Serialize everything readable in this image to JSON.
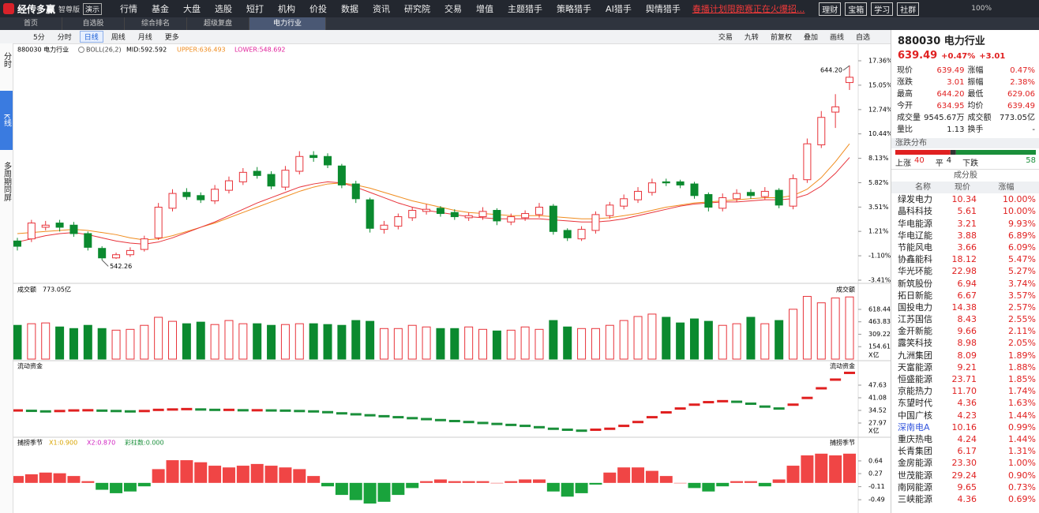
{
  "menu": {
    "logo": "经传多赢",
    "edition": "智尊版",
    "mode": "演示",
    "items": [
      "行情",
      "基金",
      "大盘",
      "选股",
      "短打",
      "机构",
      "价投",
      "数据",
      "资讯",
      "研究院",
      "交易",
      "增值",
      "主题猎手",
      "策略猎手",
      "AI猎手",
      "舆情猎手"
    ],
    "alert": "春播计划限跑赛正在火爆招...",
    "buttons": [
      "理财",
      "宝箱",
      "学习",
      "社群"
    ],
    "zoom": "100%"
  },
  "tabs": [
    "首页",
    "自选股",
    "综合排名",
    "超级复盘",
    "电力行业"
  ],
  "toolbar": {
    "periods": [
      "5分",
      "分时",
      "日线",
      "周线",
      "月线",
      "更多"
    ],
    "tools": [
      "交易",
      "九转",
      "前复权",
      "叠加",
      "画线",
      "自选"
    ]
  },
  "side_tabs": [
    "分时",
    "K线",
    "多周期同屏"
  ],
  "kline": {
    "code_name": "880030 电力行业",
    "indicator": "BOLL(26,2)",
    "mid": "MID:592.592",
    "upper": "UPPER:636.493",
    "lower": "LOWER:548.692",
    "ylim": [
      -3.41,
      17.36
    ],
    "yticks": [
      {
        "value": 17.36,
        "label": "17.36%"
      },
      {
        "value": 15.05,
        "label": "15.05%"
      },
      {
        "value": 12.74,
        "label": "12.74%"
      },
      {
        "value": 10.44,
        "label": "10.44%"
      },
      {
        "value": 8.13,
        "label": "8.13%"
      },
      {
        "value": 5.82,
        "label": "5.82%"
      },
      {
        "value": 3.51,
        "label": "3.51%"
      },
      {
        "value": 1.21,
        "label": "1.21%"
      },
      {
        "value": -1.1,
        "label": "-1.10%"
      },
      {
        "value": -3.41,
        "label": "-3.41%"
      }
    ],
    "high_label": "644.20",
    "low_label": "542.26",
    "up_color": "#e8333a",
    "down_color": "#0b8a2f",
    "open": [
      0.3,
      0.5,
      1.6,
      2.0,
      1.8,
      1.0,
      -0.4,
      -1.3,
      -1.0,
      -0.5,
      0.6,
      3.4,
      4.9,
      4.6,
      4.1,
      5.1,
      5.9,
      6.9,
      6.6,
      5.4,
      6.9,
      8.4,
      8.3,
      7.4,
      5.7,
      4.2,
      1.4,
      1.7,
      2.5,
      3.1,
      3.4,
      3.0,
      2.5,
      2.6,
      3.2,
      2.1,
      2.5,
      2.8,
      3.6,
      1.3,
      0.5,
      1.3,
      2.7,
      3.6,
      4.2,
      4.9,
      5.9,
      5.9,
      5.7,
      4.7,
      3.4,
      4.3,
      4.9,
      4.5,
      5.1,
      3.6,
      6.1,
      9.4,
      12.5,
      15.3
    ],
    "close": [
      -0.2,
      2.0,
      1.8,
      1.6,
      1.0,
      -0.3,
      -1.3,
      -1.0,
      -0.6,
      0.5,
      3.5,
      4.8,
      4.5,
      4.2,
      5.2,
      6.0,
      6.8,
      6.5,
      5.5,
      7.0,
      8.3,
      8.2,
      7.5,
      5.6,
      4.3,
      1.5,
      1.8,
      2.6,
      3.2,
      3.3,
      2.9,
      2.6,
      2.7,
      3.1,
      2.2,
      2.6,
      2.9,
      3.5,
      1.2,
      0.6,
      1.4,
      2.8,
      3.7,
      4.3,
      5.0,
      5.8,
      5.8,
      5.6,
      4.6,
      3.5,
      4.4,
      4.8,
      4.6,
      5.0,
      3.7,
      6.2,
      9.5,
      12.0,
      13.0,
      15.8
    ],
    "high": [
      0.6,
      2.3,
      2.2,
      2.3,
      2.1,
      1.2,
      -0.2,
      -0.8,
      -0.3,
      0.8,
      3.9,
      5.2,
      5.3,
      4.9,
      5.6,
      6.4,
      7.2,
      7.3,
      6.9,
      7.4,
      8.8,
      8.8,
      8.6,
      7.6,
      6.0,
      4.4,
      2.2,
      2.9,
      3.5,
      3.8,
      3.6,
      3.3,
      3.0,
      3.5,
      3.4,
      2.9,
      3.2,
      3.9,
      3.8,
      1.5,
      1.7,
      3.1,
      4.0,
      4.7,
      5.4,
      6.2,
      6.2,
      6.1,
      5.9,
      4.9,
      4.8,
      5.2,
      5.2,
      5.4,
      5.3,
      6.6,
      10.0,
      12.6,
      14.2,
      16.9
    ],
    "low": [
      -0.6,
      0.2,
      1.3,
      1.2,
      0.7,
      -0.6,
      -1.5,
      -1.4,
      -1.2,
      -0.7,
      0.4,
      3.1,
      4.2,
      3.9,
      3.8,
      4.8,
      5.6,
      6.2,
      5.2,
      5.1,
      6.6,
      7.8,
      7.2,
      5.3,
      3.9,
      1.1,
      1.0,
      1.4,
      2.2,
      2.8,
      2.6,
      2.3,
      2.2,
      2.3,
      1.8,
      1.8,
      2.2,
      2.5,
      0.9,
      0.3,
      0.3,
      1.0,
      2.4,
      3.3,
      3.9,
      4.6,
      5.5,
      5.3,
      4.3,
      3.1,
      3.1,
      4.0,
      4.3,
      4.2,
      3.4,
      3.3,
      5.8,
      9.1,
      11.0,
      14.6
    ],
    "lines": [
      {
        "color": "#f08c1e",
        "values": [
          1.0,
          1.1,
          1.2,
          1.3,
          1.4,
          1.3,
          1.1,
          0.9,
          0.6,
          0.4,
          0.5,
          0.8,
          1.2,
          1.6,
          2.0,
          2.5,
          3.0,
          3.5,
          4.0,
          4.5,
          5.0,
          5.4,
          5.7,
          5.8,
          5.6,
          5.3,
          4.9,
          4.5,
          4.1,
          3.8,
          3.5,
          3.2,
          3.0,
          2.9,
          2.8,
          2.7,
          2.7,
          2.7,
          2.6,
          2.5,
          2.4,
          2.4,
          2.5,
          2.7,
          2.9,
          3.2,
          3.5,
          3.7,
          3.9,
          4.0,
          4.1,
          4.2,
          4.3,
          4.4,
          4.4,
          4.6,
          5.2,
          6.3,
          7.8,
          9.5
        ]
      },
      {
        "color": "#e8333a",
        "values": [
          0.2,
          0.5,
          0.8,
          1.0,
          1.1,
          0.9,
          0.6,
          0.3,
          0.1,
          0.0,
          0.2,
          0.6,
          1.1,
          1.6,
          2.1,
          2.7,
          3.3,
          3.9,
          4.4,
          4.9,
          5.4,
          5.7,
          5.9,
          5.8,
          5.4,
          4.9,
          4.4,
          3.9,
          3.5,
          3.2,
          3.0,
          2.8,
          2.6,
          2.5,
          2.4,
          2.4,
          2.4,
          2.4,
          2.3,
          2.2,
          2.1,
          2.1,
          2.2,
          2.4,
          2.7,
          3.0,
          3.3,
          3.6,
          3.8,
          3.9,
          4.0,
          4.0,
          4.1,
          4.2,
          4.2,
          4.3,
          4.7,
          5.5,
          6.7,
          8.2
        ]
      }
    ]
  },
  "volume": {
    "title": "成交额",
    "value": "773.05亿",
    "label": "成交额",
    "unit": "X亿",
    "ylim": [
      0,
      800
    ],
    "yticks": [
      154.61,
      309.22,
      463.83,
      618.44
    ],
    "values": [
      420,
      440,
      450,
      400,
      380,
      420,
      380,
      360,
      370,
      420,
      520,
      470,
      440,
      460,
      430,
      480,
      440,
      440,
      420,
      430,
      440,
      440,
      430,
      420,
      480,
      470,
      380,
      380,
      420,
      400,
      380,
      380,
      400,
      370,
      350,
      360,
      400,
      370,
      480,
      400,
      380,
      380,
      420,
      480,
      530,
      560,
      520,
      450,
      500,
      470,
      420,
      440,
      520,
      440,
      480,
      620,
      780,
      700,
      760,
      773.05
    ]
  },
  "flow": {
    "title": "流动资金",
    "label": "流动资金",
    "unit": "X亿",
    "ylim": [
      21.42,
      57.05
    ],
    "yticks": [
      27.97,
      34.52,
      41.08,
      47.63
    ],
    "values": [
      34.5,
      34.3,
      34.0,
      34.2,
      34.5,
      34.6,
      34.4,
      34.2,
      34.0,
      34.2,
      34.8,
      35.0,
      35.2,
      35.0,
      34.8,
      34.8,
      34.6,
      34.6,
      34.5,
      34.4,
      34.2,
      34.0,
      33.6,
      33.0,
      32.5,
      32.0,
      31.5,
      31.0,
      30.5,
      30.0,
      29.5,
      29.0,
      28.5,
      28.0,
      27.5,
      27.0,
      26.5,
      25.8,
      25.0,
      24.5,
      24.0,
      24.5,
      25.0,
      26.5,
      28.5,
      31.0,
      33.5,
      35.5,
      37.5,
      38.8,
      39.3,
      39.0,
      38.0,
      36.5,
      35.5,
      37.5,
      41.0,
      46.0,
      50.5,
      54.0
    ]
  },
  "oscillator": {
    "title": "捕捞季节",
    "x1": "X1:0.900",
    "x2": "X2:0.870",
    "bars": "彩柱数:0.000",
    "label": "捕捞季节",
    "ylim": [
      -0.83,
      1.19
    ],
    "yticks": [
      -0.49,
      -0.11,
      0.27,
      0.64
    ],
    "values": [
      0.2,
      0.25,
      0.3,
      0.28,
      0.2,
      0.05,
      -0.2,
      -0.3,
      -0.25,
      -0.1,
      0.4,
      0.66,
      0.66,
      0.6,
      0.5,
      0.45,
      0.5,
      0.55,
      0.5,
      0.45,
      0.4,
      0.2,
      -0.1,
      -0.35,
      -0.5,
      -0.6,
      -0.55,
      -0.35,
      -0.15,
      0.05,
      0.1,
      0.05,
      0.05,
      0.05,
      0.0,
      0.05,
      0.1,
      0.1,
      -0.25,
      -0.4,
      -0.3,
      -0.05,
      0.3,
      0.45,
      0.45,
      0.35,
      0.2,
      0.0,
      -0.15,
      -0.25,
      -0.1,
      0.05,
      0.05,
      -0.1,
      0.1,
      0.5,
      0.8,
      0.85,
      0.8,
      0.85
    ]
  },
  "quote": {
    "title": "880030 电力行业",
    "price": "639.49",
    "change_pct": "+0.47%",
    "change": "+3.01",
    "rows": [
      [
        "现价",
        "639.49",
        "涨幅",
        "0.47%"
      ],
      [
        "涨跌",
        "3.01",
        "振幅",
        "2.38%"
      ],
      [
        "最高",
        "644.20",
        "最低",
        "629.06"
      ],
      [
        "今开",
        "634.95",
        "均价",
        "639.49"
      ],
      [
        "成交量",
        "9545.67万",
        "成交额",
        "773.05亿"
      ],
      [
        "量比",
        "1.13",
        "换手",
        "-"
      ]
    ]
  },
  "breadth": {
    "title": "涨跌分布",
    "up_label": "上涨",
    "up": 40,
    "flat_label": "平",
    "flat": 4,
    "down_label": "下跌",
    "down": 58
  },
  "constituents": {
    "title": "成分股",
    "columns": [
      "名称",
      "现价",
      "涨幅"
    ],
    "rows": [
      [
        "绿发电力",
        "10.34",
        "10.00%"
      ],
      [
        "晶科科技",
        "5.61",
        "10.00%"
      ],
      [
        "华电能源",
        "3.21",
        "9.93%"
      ],
      [
        "华电辽能",
        "3.88",
        "6.89%"
      ],
      [
        "节能风电",
        "3.66",
        "6.09%"
      ],
      [
        "协鑫能科",
        "18.12",
        "5.47%"
      ],
      [
        "华光环能",
        "22.98",
        "5.27%"
      ],
      [
        "新筑股份",
        "6.94",
        "3.74%"
      ],
      [
        "拓日新能",
        "6.67",
        "3.57%"
      ],
      [
        "国投电力",
        "14.38",
        "2.57%"
      ],
      [
        "江苏国信",
        "8.43",
        "2.55%"
      ],
      [
        "金开新能",
        "9.66",
        "2.11%"
      ],
      [
        "露笑科技",
        "8.98",
        "2.05%"
      ],
      [
        "九洲集团",
        "8.09",
        "1.89%"
      ],
      [
        "天富能源",
        "9.21",
        "1.88%"
      ],
      [
        "恒盛能源",
        "23.71",
        "1.85%"
      ],
      [
        "京能热力",
        "11.70",
        "1.74%"
      ],
      [
        "东望时代",
        "4.36",
        "1.63%"
      ],
      [
        "中国广核",
        "4.23",
        "1.44%"
      ],
      [
        "深南电A",
        "10.16",
        "0.99%"
      ],
      [
        "重庆热电",
        "4.24",
        "1.44%"
      ],
      [
        "长青集团",
        "6.17",
        "1.31%"
      ],
      [
        "金房能源",
        "23.30",
        "1.00%"
      ],
      [
        "世茂能源",
        "29.24",
        "0.90%"
      ],
      [
        "南网能源",
        "9.65",
        "0.73%"
      ],
      [
        "三峡能源",
        "4.36",
        "0.69%"
      ]
    ]
  }
}
